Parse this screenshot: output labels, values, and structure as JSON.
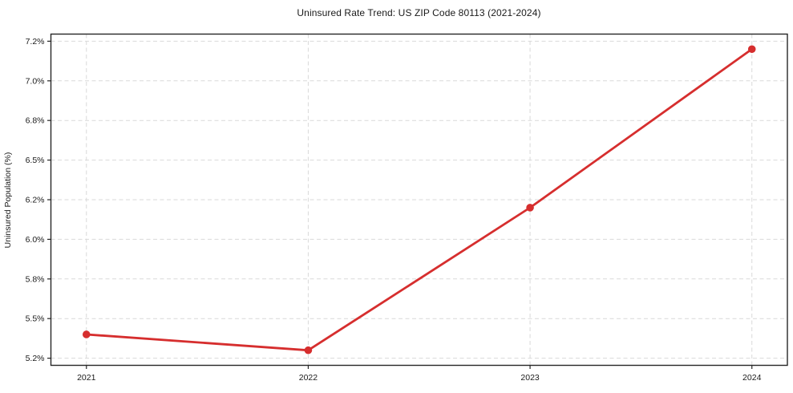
{
  "chart_data": {
    "type": "line",
    "title": "Uninsured Rate Trend: US ZIP Code 80113 (2021-2024)",
    "xlabel": "",
    "ylabel": "Uninsured Population (%)",
    "x": [
      2021,
      2022,
      2023,
      2024
    ],
    "values": [
      5.4,
      5.3,
      6.2,
      7.2
    ],
    "x_ticks": [
      {
        "value": 2021,
        "label": "2021"
      },
      {
        "value": 2022,
        "label": "2022"
      },
      {
        "value": 2023,
        "label": "2023"
      },
      {
        "value": 2024,
        "label": "2024"
      }
    ],
    "y_ticks": [
      {
        "value": 5.25,
        "label": "5.2%"
      },
      {
        "value": 5.5,
        "label": "5.5%"
      },
      {
        "value": 5.75,
        "label": "5.8%"
      },
      {
        "value": 6.0,
        "label": "6.0%"
      },
      {
        "value": 6.25,
        "label": "6.2%"
      },
      {
        "value": 6.5,
        "label": "6.5%"
      },
      {
        "value": 6.75,
        "label": "6.8%"
      },
      {
        "value": 7.0,
        "label": "7.0%"
      },
      {
        "value": 7.25,
        "label": "7.2%"
      }
    ],
    "xlim": [
      2020.84,
      2024.16
    ],
    "ylim": [
      5.205,
      7.295
    ],
    "grid": true,
    "legend": "none",
    "marker": "circle",
    "colors": {
      "line": "#d62e2e",
      "marker": "#d62e2e",
      "grid": "#d9d9d9",
      "spine": "#262626",
      "text": "#1a1a1a",
      "background": "#ffffff"
    }
  }
}
